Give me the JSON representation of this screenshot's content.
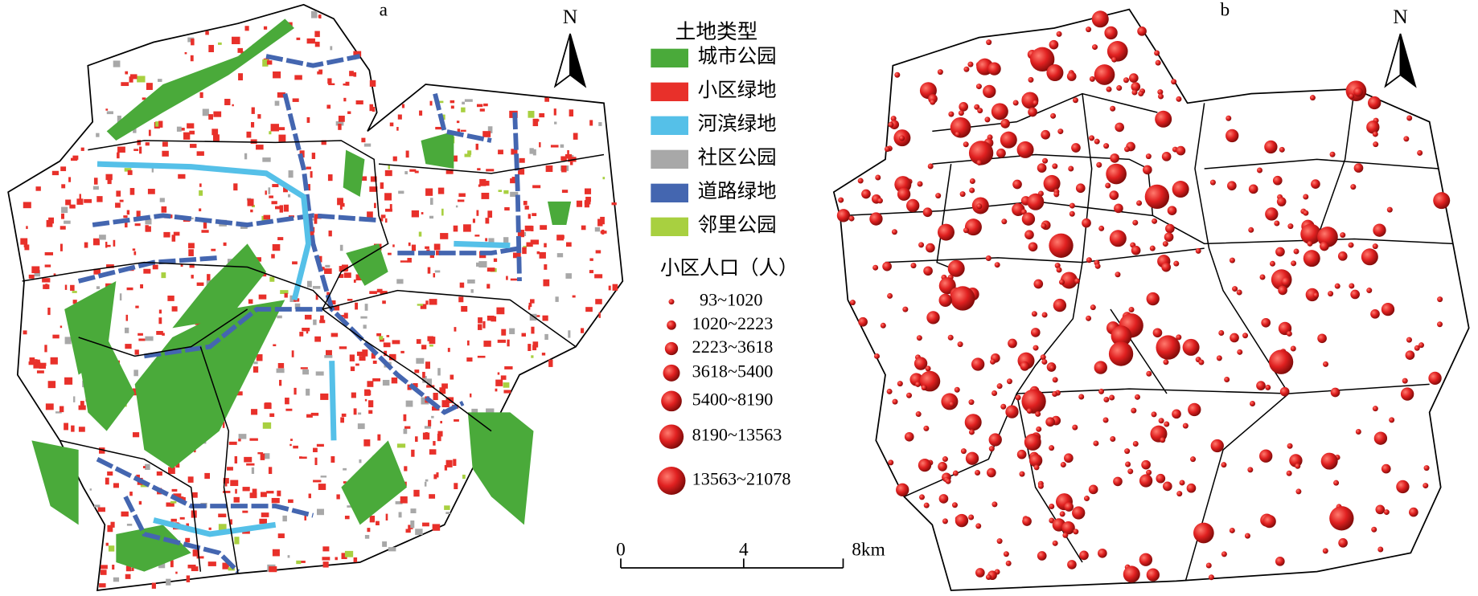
{
  "panel_a": {
    "label": "a",
    "north": "N"
  },
  "panel_b": {
    "label": "b",
    "north": "N"
  },
  "legend": {
    "land_title": "土地类型",
    "land_types": [
      {
        "label": "城市公园",
        "color": "#4aaa3a"
      },
      {
        "label": "小区绿地",
        "color": "#e8302a"
      },
      {
        "label": "河滨绿地",
        "color": "#55c0e8"
      },
      {
        "label": "社区公园",
        "color": "#a8a8a8"
      },
      {
        "label": "道路绿地",
        "color": "#4466b0"
      },
      {
        "label": "邻里公园",
        "color": "#a8d040"
      }
    ],
    "population_title": "小区人口（人）",
    "population_classes": [
      "93~1020",
      "1020~2223",
      "2223~3618",
      "3618~5400",
      "5400~8190",
      "8190~13563",
      "13563~21078"
    ]
  },
  "scale_bar": {
    "labels": [
      "0",
      "4",
      "8km"
    ]
  }
}
